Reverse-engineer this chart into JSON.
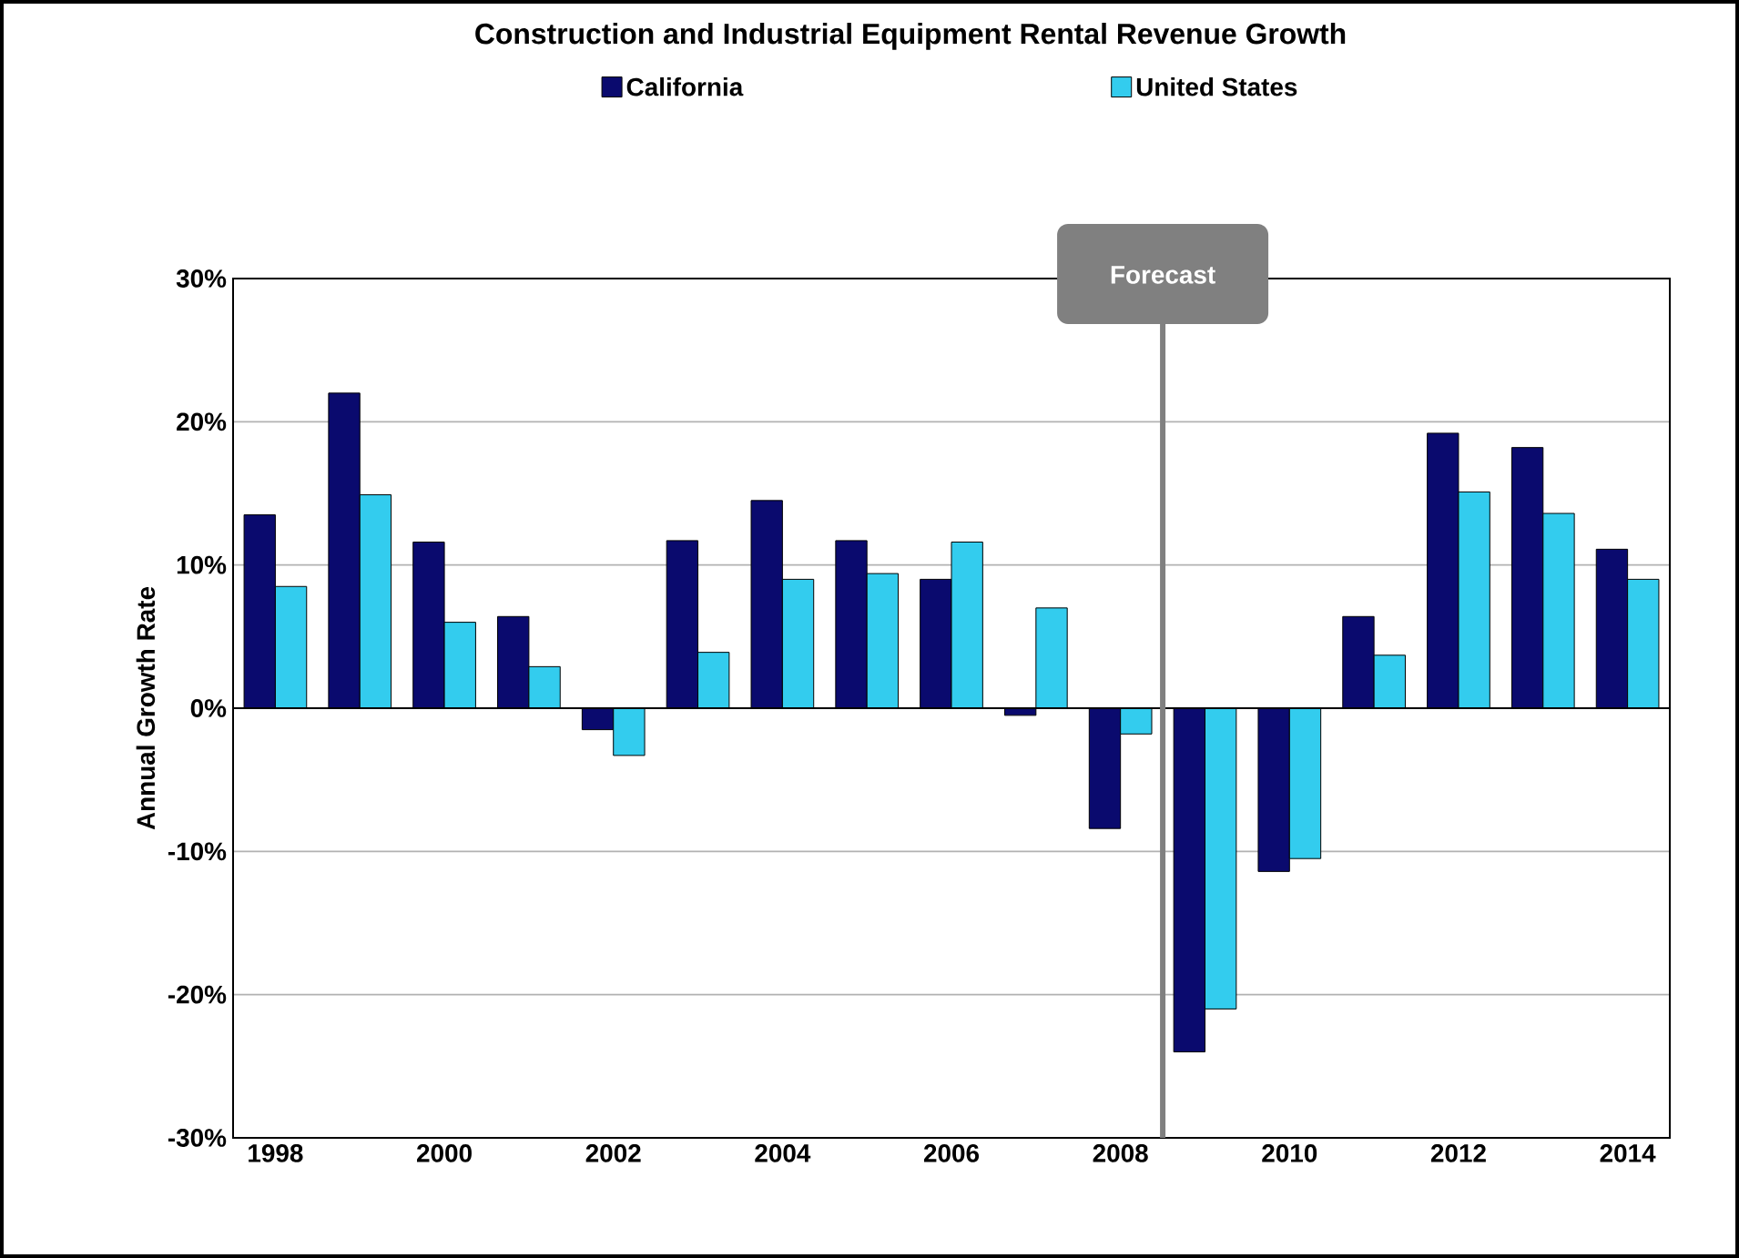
{
  "chart_data": {
    "type": "bar",
    "title": "Construction and Industrial Equipment Rental Revenue Growth",
    "ylabel": "Annual Growth Rate",
    "x": [
      1998,
      1999,
      2000,
      2001,
      2002,
      2003,
      2004,
      2005,
      2006,
      2007,
      2008,
      2009,
      2010,
      2011,
      2012,
      2013,
      2014
    ],
    "xlim": [
      1997.5,
      2014.5
    ],
    "xticks": [
      1998,
      2000,
      2002,
      2004,
      2006,
      2008,
      2010,
      2012,
      2014
    ],
    "ylim": [
      -30,
      30
    ],
    "yticks": [
      {
        "value": -30,
        "label": "-30%"
      },
      {
        "value": -20,
        "label": "-20%"
      },
      {
        "value": -10,
        "label": "-10%"
      },
      {
        "value": 0,
        "label": "0%"
      },
      {
        "value": 10,
        "label": "10%"
      },
      {
        "value": 20,
        "label": "20%"
      },
      {
        "value": 30,
        "label": "30%"
      }
    ],
    "series": [
      {
        "name": "California",
        "color": "#0a0a6e",
        "values": [
          13.5,
          22.0,
          11.6,
          6.4,
          -1.5,
          11.7,
          14.5,
          11.7,
          9.0,
          -0.5,
          -8.4,
          -24.0,
          -11.4,
          6.4,
          19.2,
          18.2,
          11.1
        ]
      },
      {
        "name": "United States",
        "color": "#33ccee",
        "values": [
          8.5,
          14.9,
          6.0,
          2.9,
          -3.3,
          3.9,
          9.0,
          9.4,
          11.6,
          7.0,
          -1.8,
          -21.0,
          -10.5,
          3.7,
          15.1,
          13.6,
          9.0
        ]
      }
    ],
    "ref_lines": [
      {
        "axis": "x",
        "value": 2008.5,
        "label": "Forecast",
        "color": "#808080"
      }
    ],
    "grid": "y",
    "legend": "top"
  }
}
